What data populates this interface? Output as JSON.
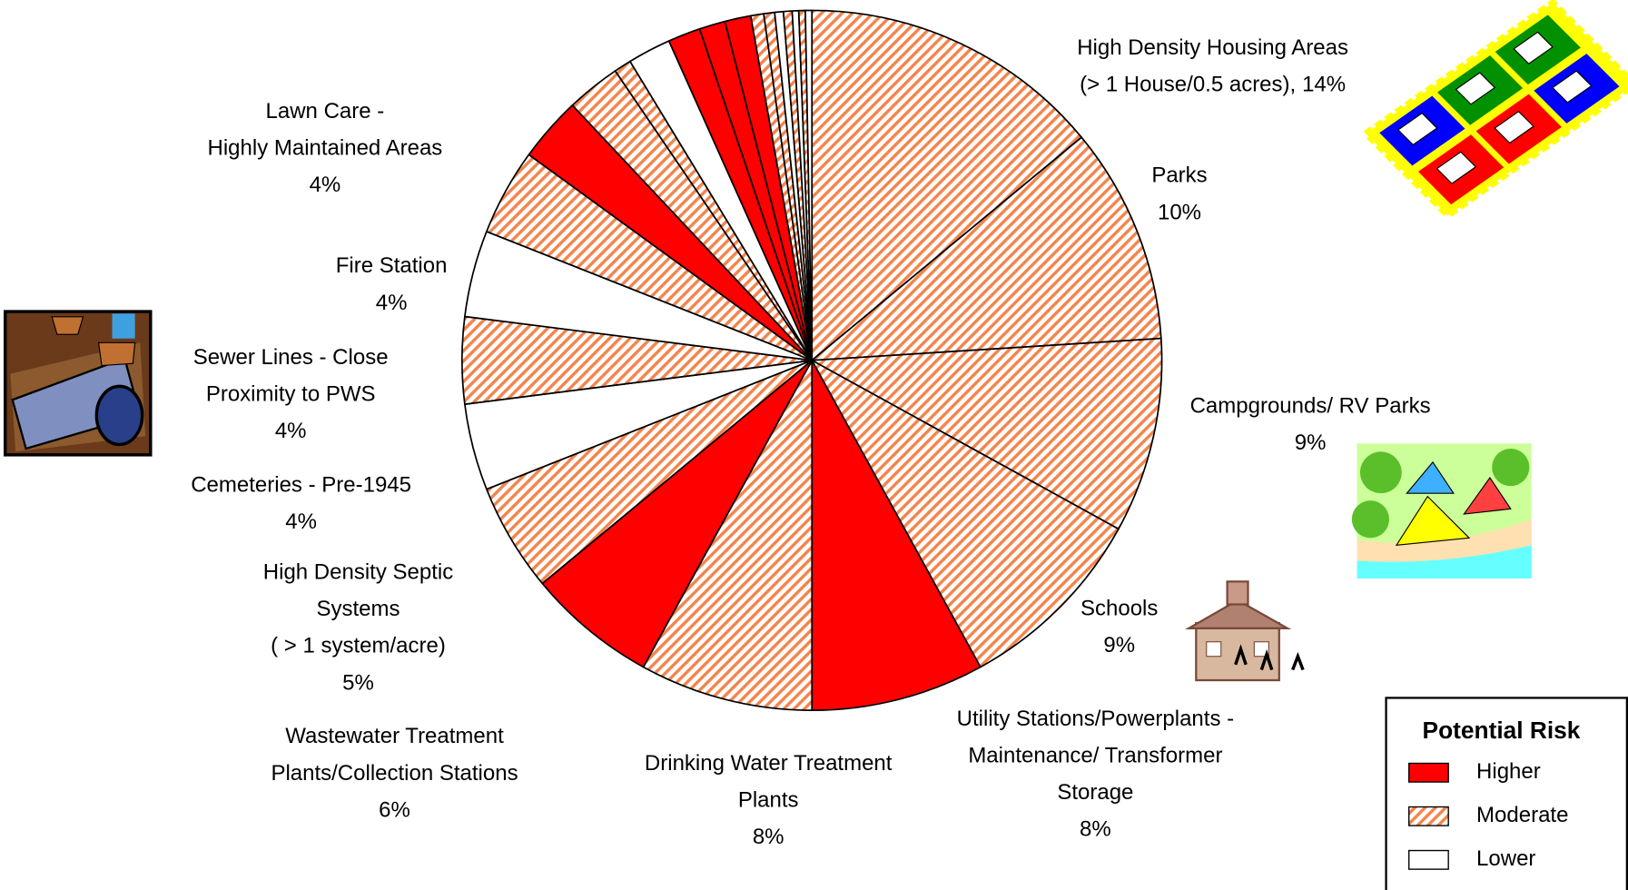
{
  "chart_data": {
    "type": "pie",
    "categories": [
      [
        "High Density Housing Areas",
        "(> 1 House/0.5 acres),"
      ],
      [
        "Parks"
      ],
      [
        "Campgrounds/ RV Parks"
      ],
      [
        "Schools"
      ],
      [
        "Utility Stations/Powerplants -",
        "Maintenance/ Transformer",
        "Storage"
      ],
      [
        "Drinking Water Treatment",
        "Plants"
      ],
      [
        "Wastewater Treatment",
        "Plants/Collection Stations"
      ],
      [
        "High Density Septic",
        "Systems",
        "( > 1 system/acre)"
      ],
      [
        "Cemeteries - Pre-1945"
      ],
      [
        "Sewer Lines - Close",
        "Proximity to PWS"
      ],
      [
        "Fire Station"
      ],
      [
        "Lawn Care -",
        "Highly Maintained Areas"
      ],
      null,
      null,
      null,
      null,
      null,
      null,
      null,
      null,
      null,
      null,
      null,
      null,
      null,
      null
    ],
    "values": [
      14,
      10,
      9,
      9,
      8,
      8,
      6,
      5,
      4,
      4,
      4,
      4,
      3,
      2.5,
      0.8,
      2,
      1.5,
      1.2,
      1.2,
      0.6,
      0.5,
      0.4,
      0.4,
      0.3,
      0.3,
      0.3
    ],
    "value_labels": [
      "14%",
      "10%",
      "9%",
      "9%",
      "8%",
      "8%",
      "6%",
      "5%",
      "4%",
      "4%",
      "4%",
      "4%",
      null,
      null,
      null,
      null,
      null,
      null,
      null,
      null,
      null,
      null,
      null,
      null,
      null,
      null
    ],
    "risk": [
      1,
      1,
      1,
      1,
      0,
      1,
      0,
      1,
      2,
      1,
      2,
      1,
      0,
      1,
      1,
      2,
      0,
      0,
      0,
      1,
      1,
      2,
      1,
      2,
      1,
      2
    ],
    "legend": {
      "title": "Potential Risk",
      "position": "lower right",
      "series": [
        {
          "name": "Higher",
          "color": "#ff0000"
        },
        {
          "name": "Moderate",
          "color": "#f4844c"
        },
        {
          "name": "Lower",
          "color": "#ffffff"
        }
      ]
    }
  }
}
